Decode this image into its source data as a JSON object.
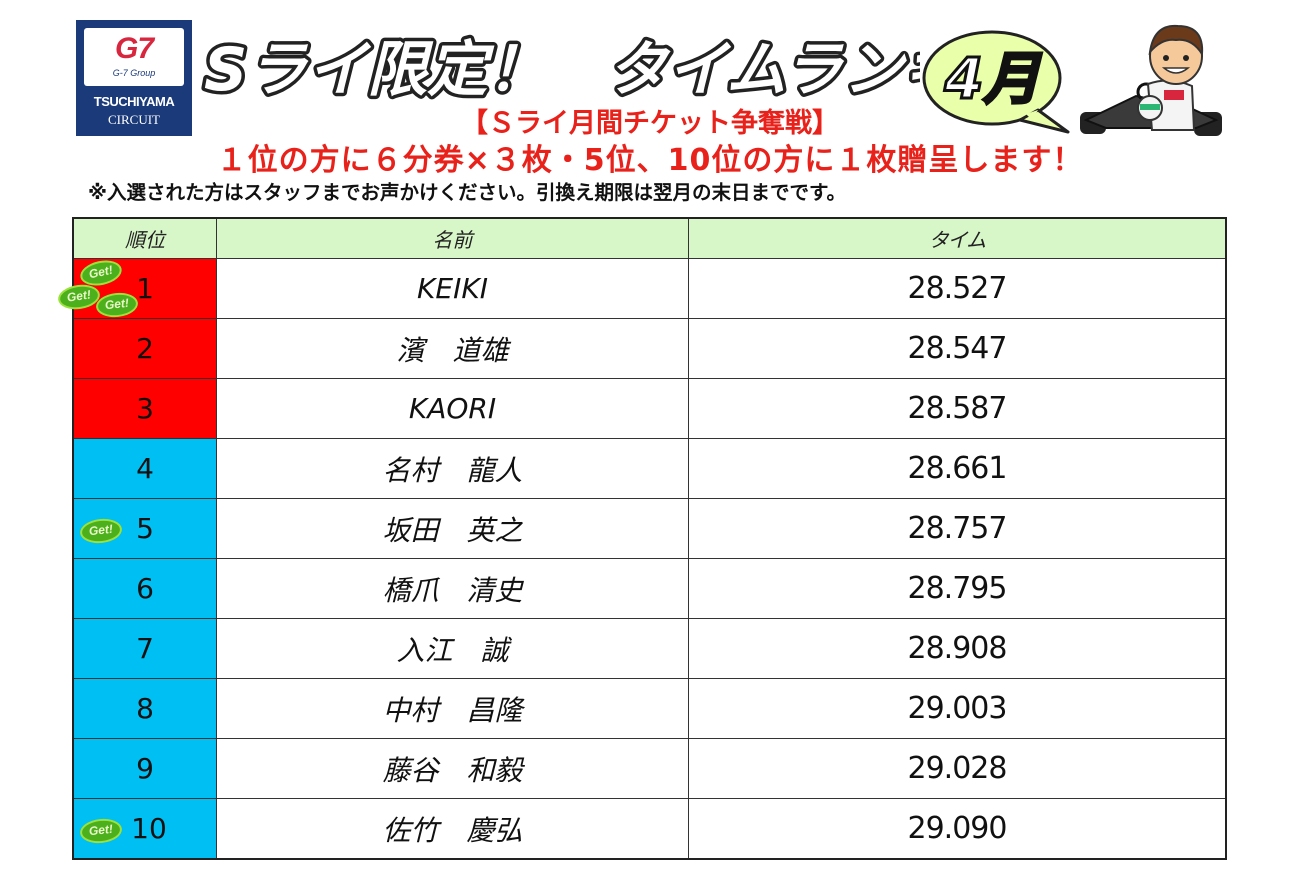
{
  "logo": {
    "brand": "G7",
    "group": "G-7 Group",
    "line1": "TSUCHIYAMA",
    "line2": "CIRCUIT"
  },
  "header": {
    "title": "Sライ限定！　タイムランキング",
    "month": "4月",
    "subtitle": "【Ｓライ月間チケット争奪戦】",
    "prize": "１位の方に６分券×３枚・5位、10位の方に１枚贈呈します！",
    "note": "※入選された方はスタッフまでお声かけください。引換え期限は翌月の末日までです。"
  },
  "colors": {
    "top3": "#ff0000",
    "others": "#00bff3",
    "header_bg": "#d8f7c8",
    "accent_red": "#e8211a",
    "get_badge": "#4caf1c"
  },
  "table": {
    "headers": [
      "順位",
      "名前",
      "タイム"
    ],
    "badge_text": "Get!",
    "rows": [
      {
        "rank": "1",
        "name": "KEIKI",
        "time": "28.527"
      },
      {
        "rank": "2",
        "name": "濱　道雄",
        "time": "28.547"
      },
      {
        "rank": "3",
        "name": "KAORI",
        "time": "28.587"
      },
      {
        "rank": "4",
        "name": "名村　龍人",
        "time": "28.661"
      },
      {
        "rank": "5",
        "name": "坂田　英之",
        "time": "28.757"
      },
      {
        "rank": "6",
        "name": "橋爪　清史",
        "time": "28.795"
      },
      {
        "rank": "7",
        "name": "入江　誠",
        "time": "28.908"
      },
      {
        "rank": "8",
        "name": "中村　昌隆",
        "time": "29.003"
      },
      {
        "rank": "9",
        "name": "藤谷　和毅",
        "time": "29.028"
      },
      {
        "rank": "10",
        "name": "佐竹　慶弘",
        "time": "29.090"
      }
    ]
  }
}
